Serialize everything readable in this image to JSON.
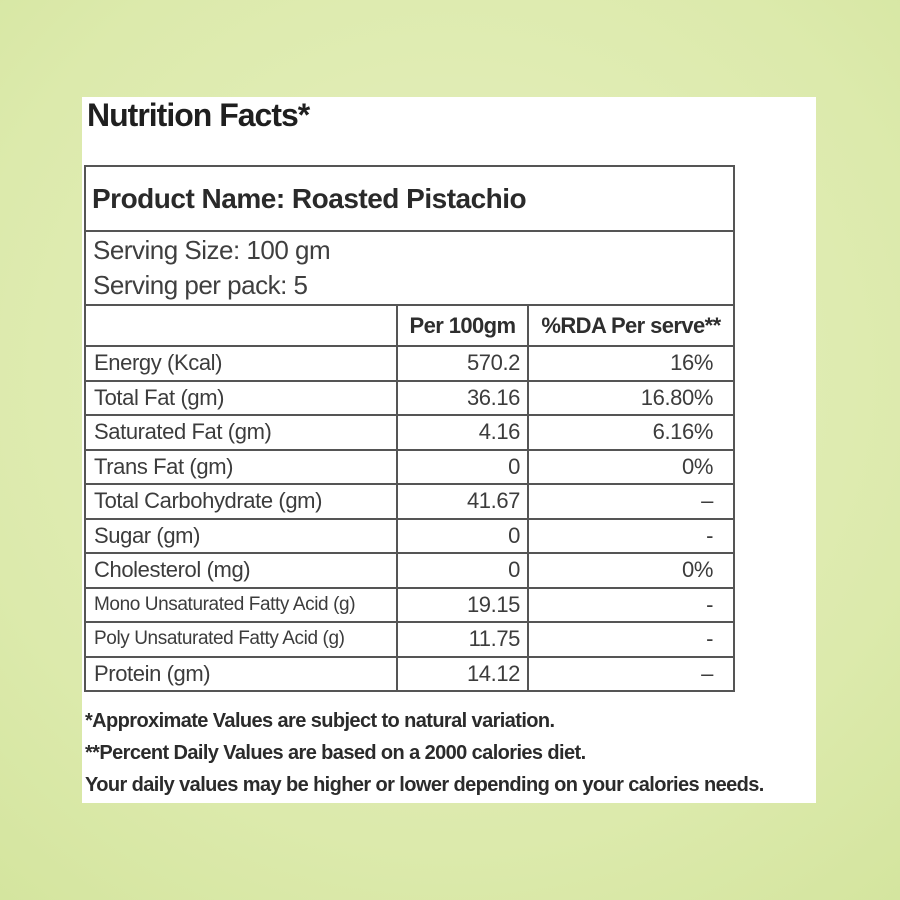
{
  "title": "Nutrition Facts*",
  "panel": {
    "product_name": "Product Name: Roasted Pistachio",
    "serving_size": "Serving Size: 100 gm",
    "serving_per_pack": "Serving per pack: 5"
  },
  "table": {
    "columns": [
      "",
      "Per 100gm",
      "%RDA Per serve**"
    ],
    "rows": [
      {
        "label": "Energy (Kcal)",
        "per_100gm": "570.2",
        "rda": "16%"
      },
      {
        "label": "Total Fat (gm)",
        "per_100gm": "36.16",
        "rda": "16.80%"
      },
      {
        "label": "Saturated Fat (gm)",
        "per_100gm": "4.16",
        "rda": "6.16%"
      },
      {
        "label": "Trans Fat (gm)",
        "per_100gm": "0",
        "rda": "0%"
      },
      {
        "label": "Total Carbohydrate (gm)",
        "per_100gm": "41.67",
        "rda": "–"
      },
      {
        "label": "Sugar (gm)",
        "per_100gm": "0",
        "rda": "-"
      },
      {
        "label": "Cholesterol (mg)",
        "per_100gm": "0",
        "rda": "0%"
      },
      {
        "label": "Mono Unsaturated Fatty Acid (g)",
        "per_100gm": "19.15",
        "rda": "-"
      },
      {
        "label": "Poly Unsaturated Fatty Acid (g)",
        "per_100gm": "11.75",
        "rda": "-"
      },
      {
        "label": "Protein (gm)",
        "per_100gm": "14.12",
        "rda": "–"
      }
    ]
  },
  "footnotes": [
    "*Approximate Values are subject to natural variation.",
    "**Percent Daily Values are based on a 2000 calories diet.",
    "Your daily values may be higher or lower depending on your calories needs."
  ],
  "colors": {
    "background_edge": "#c7dc88",
    "background_center": "#e7f0c1",
    "panel": "#ffffff",
    "table_border": "#555555",
    "text": "#3c3c3c"
  }
}
